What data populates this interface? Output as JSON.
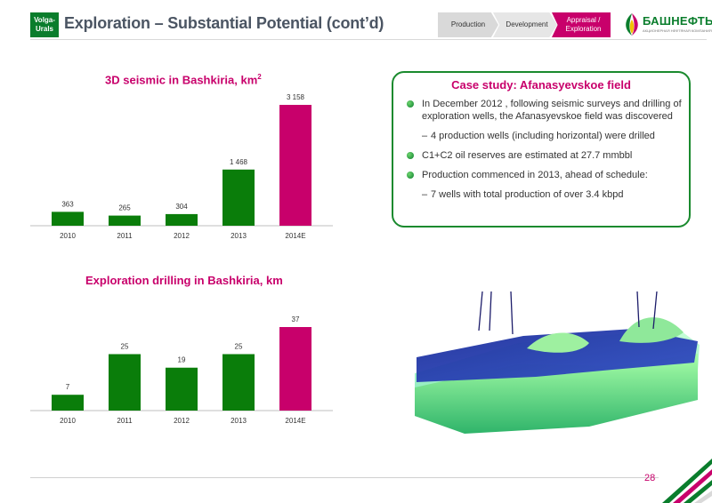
{
  "header": {
    "region_line1": "Volga-",
    "region_line2": "Urals",
    "title": "Exploration – Substantial Potential (cont’d)",
    "steps": [
      {
        "label": "Production"
      },
      {
        "label": "Development"
      },
      {
        "label_line1": "Appraisal /",
        "label_line2": "Exploration"
      }
    ],
    "logo_text": "БАШНЕФТЬ",
    "logo_sub": "АКЦИОНЕРНАЯ НЕФТЯНАЯ КОМПАНИЯ"
  },
  "charts": [
    {
      "title": "3D seismic in Bashkiria, km",
      "title_sup": "2",
      "chart_data": {
        "type": "bar",
        "title": "3D seismic in Bashkiria, km2",
        "categories": [
          "2010",
          "2011",
          "2012",
          "2013",
          "2014E"
        ],
        "values": [
          363,
          265,
          304,
          1468,
          3158
        ],
        "labels": [
          "363",
          "265",
          "304",
          "1 468",
          "3 158"
        ],
        "ylim": [
          0,
          3158
        ],
        "grid": false,
        "colors": [
          "#0a7d0a",
          "#0a7d0a",
          "#0a7d0a",
          "#0a7d0a",
          "#c8006b"
        ]
      }
    },
    {
      "title": "Exploration drilling in Bashkiria, km",
      "chart_data": {
        "type": "bar",
        "title": "Exploration drilling in Bashkiria, km",
        "categories": [
          "2010",
          "2011",
          "2012",
          "2013",
          "2014E"
        ],
        "values": [
          7,
          25,
          19,
          25,
          37
        ],
        "labels": [
          "7",
          "25",
          "19",
          "25",
          "37"
        ],
        "ylim": [
          0,
          37
        ],
        "grid": false,
        "colors": [
          "#0a7d0a",
          "#0a7d0a",
          "#0a7d0a",
          "#0a7d0a",
          "#c8006b"
        ]
      }
    }
  ],
  "case_study": {
    "title": "Case study: Afanasyevskoe field",
    "items": [
      {
        "text": "In December 2012 , following seismic surveys and drilling of exploration wells, the Afanasyevskoe field was discovered"
      },
      {
        "text": "4 production wells (including horizontal) were drilled"
      },
      {
        "text": "C1+C2 oil reserves are estimated at 27.7 mmbbl"
      },
      {
        "text": "Production commenced in 2013, ahead of schedule:"
      },
      {
        "text": "7 wells with total production of over 3.4 kbpd"
      }
    ]
  },
  "footer": {
    "page_number": "28"
  },
  "colors": {
    "green": "#0a7d0a",
    "magenta": "#c8006b",
    "box_border": "#1a8a2e"
  }
}
